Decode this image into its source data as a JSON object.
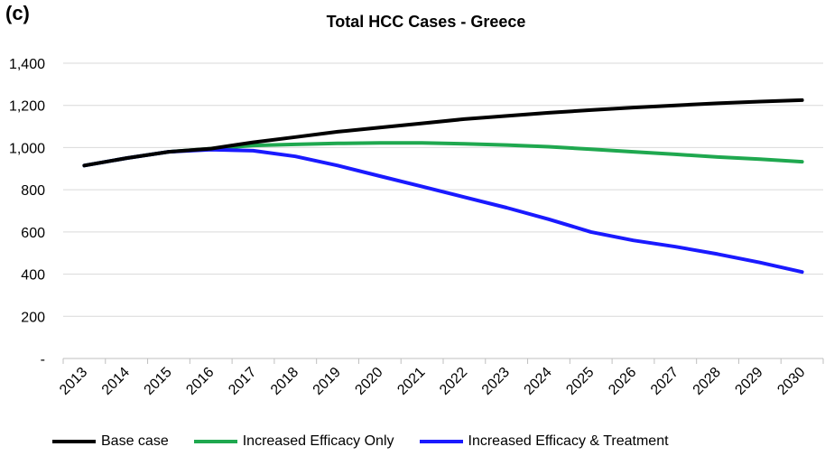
{
  "panel_label": "(c)",
  "chart_data": {
    "type": "line",
    "title": "Total HCC Cases - Greece",
    "xlabel": "",
    "ylabel": "",
    "categories": [
      "2013",
      "2014",
      "2015",
      "2016",
      "2017",
      "2018",
      "2019",
      "2020",
      "2021",
      "2022",
      "2023",
      "2024",
      "2025",
      "2026",
      "2027",
      "2028",
      "2029",
      "2030"
    ],
    "ylim": [
      0,
      1400
    ],
    "yticks": [
      0,
      200,
      400,
      600,
      800,
      1000,
      1200,
      1400
    ],
    "ytick_labels": [
      "-",
      "200",
      "400",
      "600",
      "800",
      "1,000",
      "1,200",
      "1,400"
    ],
    "grid": true,
    "legend_position": "bottom",
    "series": [
      {
        "name": "Base case",
        "color": "#000000",
        "values": [
          915,
          950,
          980,
          995,
          1025,
          1050,
          1075,
          1095,
          1115,
          1135,
          1150,
          1165,
          1178,
          1190,
          1200,
          1210,
          1218,
          1225
        ]
      },
      {
        "name": "Increased Efficacy Only",
        "color": "#1fa84f",
        "values": [
          915,
          950,
          980,
          995,
          1010,
          1015,
          1020,
          1022,
          1022,
          1018,
          1012,
          1004,
          992,
          980,
          968,
          955,
          945,
          933
        ]
      },
      {
        "name": "Increased Efficacy & Treatment",
        "color": "#1a1aff",
        "values": [
          915,
          950,
          980,
          990,
          985,
          958,
          915,
          865,
          815,
          765,
          715,
          660,
          600,
          560,
          530,
          495,
          455,
          410
        ]
      }
    ]
  }
}
